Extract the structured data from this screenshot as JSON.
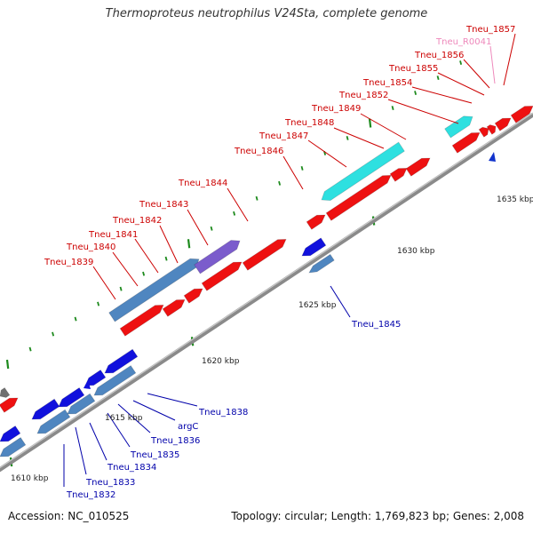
{
  "title": "Thermoproteus neutrophilus V24Sta, complete genome",
  "footer": {
    "accession": "Accession: NC_010525",
    "summary": "Topology: circular; Length: 1,769,823 bp; Genes: 2,008"
  },
  "colors": {
    "forward_gene": "#ee1111",
    "reverse_gene": "#1111dd",
    "forward_cds_alt": "#2ee0e0",
    "reverse_cds_alt": "#4f86c0",
    "purple_gene": "#7b5ccc",
    "gray_gene": "#707070",
    "rna_gene": "#1133cc",
    "backbone": "#8a8a8a",
    "tick": "#1d8a1d",
    "forward_label": "#cc0000",
    "reverse_label": "#0000aa",
    "rna_label": "#ee88bb"
  },
  "kbp_labels": [
    "1610 kbp",
    "1615 kbp",
    "1620 kbp",
    "1625 kbp",
    "1630 kbp",
    "1635 kbp"
  ],
  "forward_labels": [
    "Tneu_1839",
    "Tneu_1840",
    "Tneu_1841",
    "Tneu_1842",
    "Tneu_1843",
    "Tneu_1844",
    "Tneu_1846",
    "Tneu_1847",
    "Tneu_1848",
    "Tneu_1849",
    "Tneu_1852",
    "Tneu_1854",
    "Tneu_1855",
    "Tneu_1856",
    "Tneu_R0041",
    "Tneu_1857"
  ],
  "reverse_labels": [
    "Tneu_1832",
    "Tneu_1833",
    "Tneu_1834",
    "Tneu_1835",
    "Tneu_1836",
    "argC",
    "Tneu_1838",
    "Tneu_1845"
  ]
}
